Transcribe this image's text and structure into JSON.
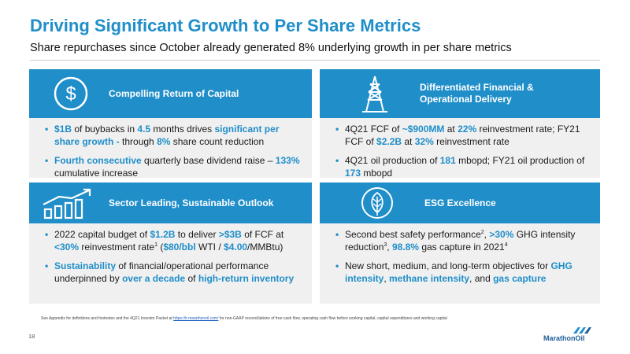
{
  "slide": {
    "title": "Driving Significant Growth to Per Share Metrics",
    "subtitle": "Share repurchases since October already generated 8% underlying growth in per share metrics",
    "page_number": "18",
    "logo_text": "MarathonOil",
    "accent_color": "#1f8ec9"
  },
  "panels": {
    "p1": {
      "title": "Compelling Return of Capital",
      "icon": "dollar-coin-icon",
      "bullets": [
        [
          {
            "t": "$1B",
            "h": true
          },
          {
            "t": " of buybacks in "
          },
          {
            "t": "4.5",
            "h": true
          },
          {
            "t": " months drives "
          },
          {
            "t": "significant per share growth -",
            "h": true
          },
          {
            "t": " through "
          },
          {
            "t": "8%",
            "h": true
          },
          {
            "t": " share count reduction"
          }
        ],
        [
          {
            "t": "Fourth consecutive",
            "h": true
          },
          {
            "t": " quarterly base dividend raise – "
          },
          {
            "t": "133%",
            "h": true
          },
          {
            "t": " cumulative increase"
          }
        ]
      ]
    },
    "p2": {
      "title_line1": "Differentiated Financial &",
      "title_line2": "Operational Delivery",
      "icon": "oil-derrick-icon",
      "bullets": [
        [
          {
            "t": "4Q21 FCF of "
          },
          {
            "t": "~$900MM",
            "h": true
          },
          {
            "t": " at "
          },
          {
            "t": "22%",
            "h": true
          },
          {
            "t": " reinvestment rate; FY21 FCF of "
          },
          {
            "t": "$2.2B",
            "h": true
          },
          {
            "t": " at "
          },
          {
            "t": "32%",
            "h": true
          },
          {
            "t": " reinvestment rate"
          }
        ],
        [
          {
            "t": "4Q21 oil production of "
          },
          {
            "t": "181",
            "h": true
          },
          {
            "t": " mbopd; FY21 oil production of "
          },
          {
            "t": "173",
            "h": true
          },
          {
            "t": " mbopd"
          }
        ]
      ]
    },
    "p3": {
      "title": "Sector Leading, Sustainable Outlook",
      "icon": "growth-chart-icon",
      "bullets": [
        [
          {
            "t": "2022 capital budget of "
          },
          {
            "t": "$1.2B",
            "h": true
          },
          {
            "t": " to deliver "
          },
          {
            "t": ">$3B",
            "h": true
          },
          {
            "t": " of FCF at "
          },
          {
            "t": "<30%",
            "h": true
          },
          {
            "t": " reinvestment rate"
          },
          {
            "t": "1",
            "s": true
          },
          {
            "t": " ("
          },
          {
            "t": "$80/bbl",
            "h": true
          },
          {
            "t": " WTI / "
          },
          {
            "t": "$4.00",
            "h": true
          },
          {
            "t": "/MMBtu)"
          }
        ],
        [
          {
            "t": "Sustainability",
            "h": true
          },
          {
            "t": " of financial/operational performance underpinned by "
          },
          {
            "t": "over a decade",
            "h": true
          },
          {
            "t": " of "
          },
          {
            "t": "high-return inventory",
            "h": true
          }
        ]
      ]
    },
    "p4": {
      "title": "ESG Excellence",
      "icon": "leaf-icon",
      "bullets": [
        [
          {
            "t": "Second best safety performance"
          },
          {
            "t": "2",
            "s": true
          },
          {
            "t": ", "
          },
          {
            "t": ">30%",
            "h": true
          },
          {
            "t": " GHG intensity reduction"
          },
          {
            "t": "3",
            "s": true
          },
          {
            "t": ", "
          },
          {
            "t": "98.8%",
            "h": true
          },
          {
            "t": " gas capture in 2021"
          },
          {
            "t": "4",
            "s": true
          }
        ],
        [
          {
            "t": "New short, medium, and long-term objectives for "
          },
          {
            "t": "GHG intensity",
            "h": true
          },
          {
            "t": ", "
          },
          {
            "t": "methane intensity",
            "h": true
          },
          {
            "t": ", and "
          },
          {
            "t": "gas capture",
            "h": true
          }
        ]
      ]
    }
  },
  "footnote": {
    "before": "See Appendix for definitions and footnotes and the 4Q21 Investor Packet at ",
    "link": "https://ir.marathonoil.com/",
    "after": " for non-GAAP reconciliations of free cash flow, operating cash flow before working capital, capital expenditures and working capital"
  }
}
